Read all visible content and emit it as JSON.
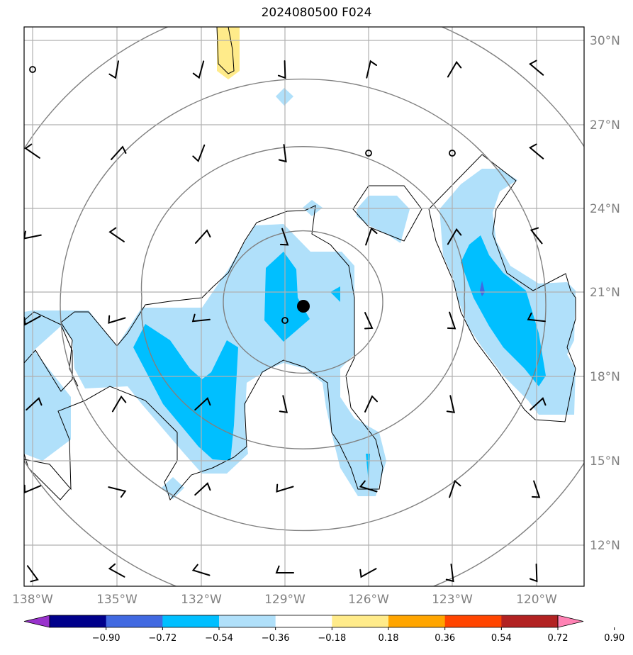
{
  "title": "2024080500 F024",
  "colors": {
    "grid": "#b0b0b0",
    "contour": "#000000",
    "ring": "#808080",
    "barb": "#000000",
    "center": "#000000"
  },
  "axes": {
    "lon_labels": [
      "138°W",
      "135°W",
      "132°W",
      "129°W",
      "126°W",
      "123°W",
      "120°W"
    ],
    "lat_labels": [
      "30°N",
      "27°N",
      "24°N",
      "21°N",
      "18°N",
      "15°N",
      "12°N"
    ]
  },
  "colorbar": {
    "tick_labels": [
      "−0.90",
      "−0.72",
      "−0.54",
      "−0.36",
      "−0.18",
      "0.18",
      "0.36",
      "0.54",
      "0.72",
      "0.90"
    ],
    "colors": [
      "#9932cc",
      "#00008b",
      "#4169e1",
      "#00bfff",
      "#b0e0fa",
      "#ffffff",
      "#ffeb8a",
      "#ffa500",
      "#ff4500",
      "#b22222",
      "#ff82b4"
    ]
  },
  "fill_colors": {
    "light_blue": "#b0e0fa",
    "deep_sky": "#00bfff",
    "royal_blue": "#4169e1",
    "yellow": "#ffeb8a"
  }
}
